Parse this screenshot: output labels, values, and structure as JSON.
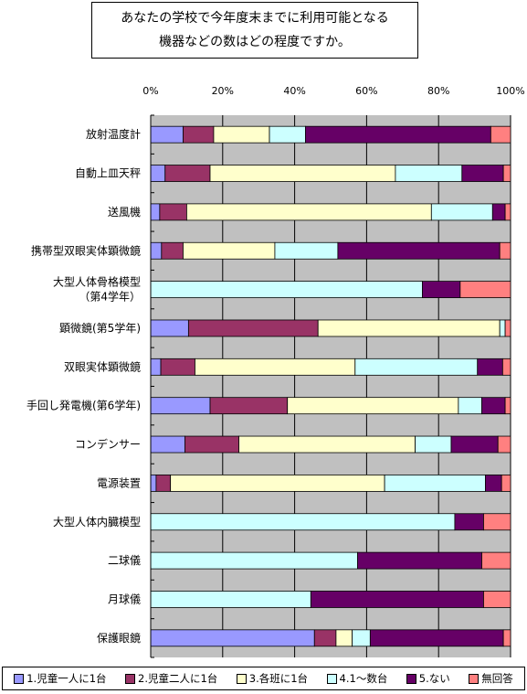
{
  "chart_data": {
    "type": "bar",
    "orientation": "horizontal",
    "stacked": true,
    "percent": true,
    "title_lines": [
      "あなたの学校で今年度末までに利用可能となる",
      "機器などの数はどの程度ですか。"
    ],
    "xlim": [
      0,
      100
    ],
    "x_ticks": [
      "0%",
      "20%",
      "40%",
      "60%",
      "80%",
      "100%"
    ],
    "grid": true,
    "legend_position": "bottom",
    "categories": [
      [
        "放射温度計"
      ],
      [
        "自動上皿天秤"
      ],
      [
        "送風機"
      ],
      [
        "携帯型双眼実体顕微鏡"
      ],
      [
        "大型人体骨格模型",
        "（第4学年）"
      ],
      [
        "顕微鏡(第5学年)"
      ],
      [
        "双眼実体顕微鏡"
      ],
      [
        "手回し発電機(第6学年)"
      ],
      [
        "コンデンサー"
      ],
      [
        "電源装置"
      ],
      [
        "大型人体内臓模型"
      ],
      [
        "二球儀"
      ],
      [
        "月球儀"
      ],
      [
        "保護眼鏡"
      ]
    ],
    "series": [
      {
        "name": "1.児童一人に1台",
        "color": "#9999ff",
        "values": [
          9,
          4,
          2.5,
          3,
          0,
          10.5,
          2.8,
          16.5,
          9.5,
          1.5,
          0,
          0,
          0,
          45.5
        ]
      },
      {
        "name": "2.児童二人に1台",
        "color": "#993366",
        "values": [
          8.5,
          12.5,
          7.5,
          6,
          0,
          36,
          9.5,
          21.5,
          15,
          4,
          0,
          0,
          0,
          6
        ]
      },
      {
        "name": "3.各班に1台",
        "color": "#ffffcc",
        "values": [
          15.5,
          51.5,
          68,
          25.5,
          0,
          50.5,
          44.5,
          47.5,
          49,
          59.5,
          0,
          0,
          0,
          4.5
        ]
      },
      {
        "name": "4.1～数台",
        "color": "#ccffff",
        "values": [
          10,
          18.5,
          17,
          17.5,
          75.5,
          1.5,
          34,
          6.5,
          10,
          28,
          84.5,
          57.5,
          44.5,
          5
        ]
      },
      {
        "name": "5.ない",
        "color": "#660066",
        "values": [
          51.5,
          11.5,
          3.5,
          45,
          10.5,
          0,
          7,
          6.5,
          13,
          4.5,
          8,
          34.5,
          48,
          37
        ]
      },
      {
        "name": "無回答",
        "color": "#ff8080",
        "values": [
          5.5,
          2,
          1.5,
          3,
          14,
          1.5,
          2.2,
          1.5,
          3.5,
          2.5,
          7.5,
          8,
          7.5,
          2
        ]
      }
    ]
  }
}
